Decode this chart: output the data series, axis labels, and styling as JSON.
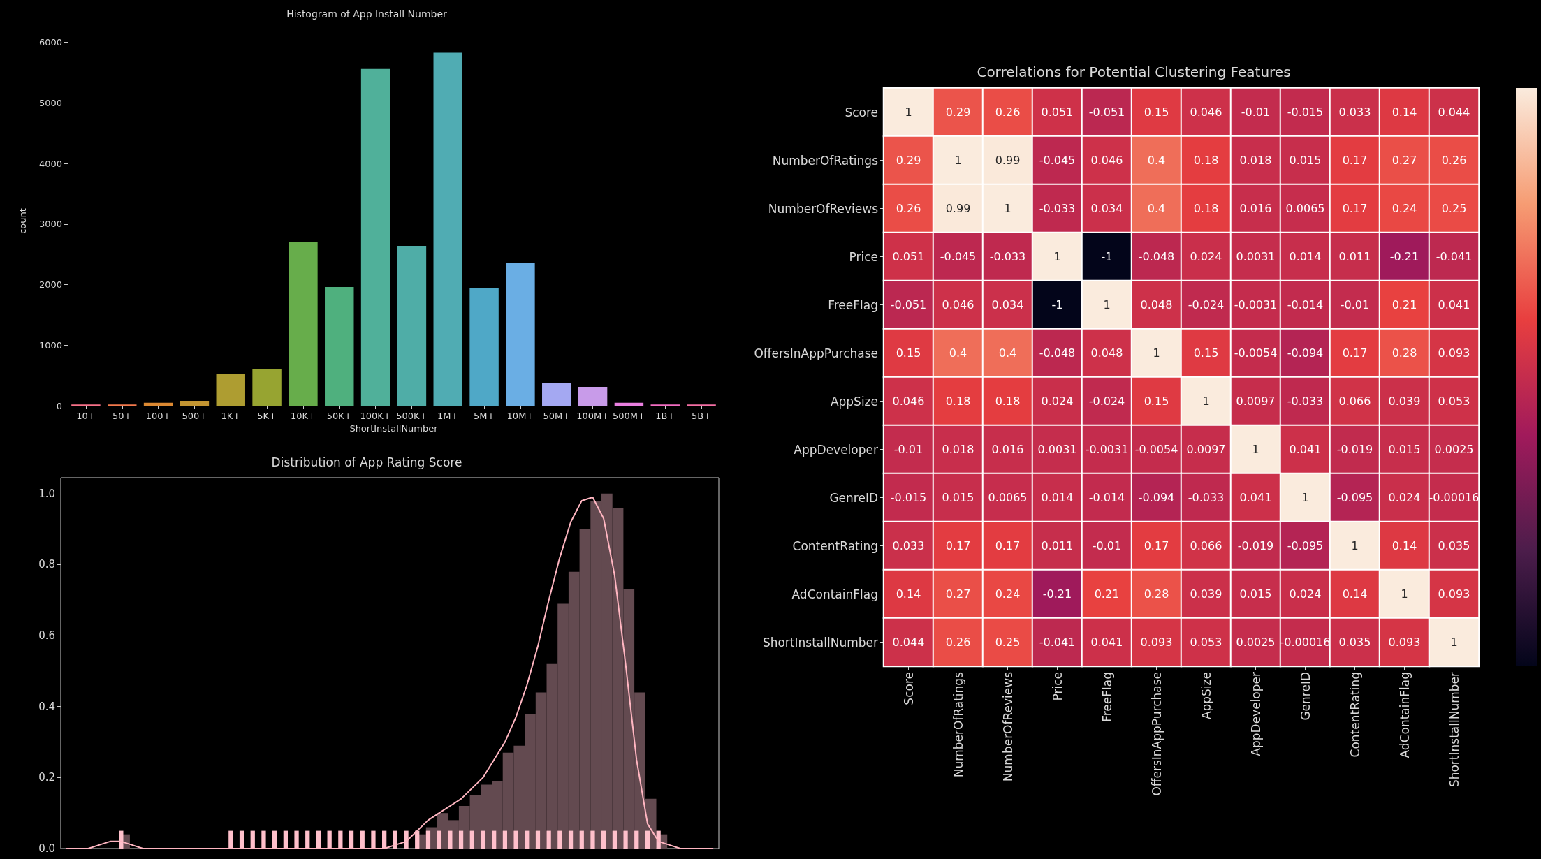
{
  "chart_data": [
    {
      "type": "bar",
      "title": "Histogram of App Install Number",
      "xlabel": "ShortInstallNumber",
      "ylabel": "count",
      "categories": [
        "10+",
        "50+",
        "100+",
        "500+",
        "1K+",
        "5K+",
        "10K+",
        "50K+",
        "100K+",
        "500K+",
        "1M+",
        "5M+",
        "10M+",
        "50M+",
        "100M+",
        "500M+",
        "1B+",
        "5B+"
      ],
      "values": [
        20,
        20,
        50,
        80,
        530,
        610,
        2710,
        1960,
        5560,
        2640,
        5830,
        1950,
        2360,
        370,
        310,
        50,
        20,
        20
      ],
      "colors": [
        "#f77189",
        "#f3794c",
        "#dc8932",
        "#c39532",
        "#ae9d31",
        "#97a431",
        "#67ad4b",
        "#4fb07e",
        "#50b09a",
        "#4fada7",
        "#50acb3",
        "#4fa8c7",
        "#6aaee4",
        "#a4a8f2",
        "#c89be9",
        "#e97fe0",
        "#f36dc2",
        "#f56fa4"
      ],
      "ylim": [
        0,
        6100
      ],
      "yticks": [
        0,
        1000,
        2000,
        3000,
        4000,
        5000,
        6000
      ]
    },
    {
      "type": "bar",
      "title": "Distribution of App Rating Score",
      "tick_labels": "y",
      "categories": [
        null,
        null,
        null,
        null,
        null,
        null,
        null,
        null,
        null,
        null,
        null,
        null,
        null,
        null,
        null,
        null,
        null,
        null,
        null,
        null,
        null,
        null,
        null,
        null,
        null,
        null,
        null,
        null,
        null,
        null,
        null,
        null,
        null,
        null,
        null,
        null,
        null,
        null,
        null,
        null,
        null,
        null,
        null,
        null,
        null,
        null,
        null,
        null,
        null,
        null,
        null,
        null,
        null,
        null,
        null,
        null,
        null,
        null,
        null,
        null
      ],
      "series": [
        {
          "type": "bar",
          "color": "#634a50",
          "values": [
            0,
            0,
            0,
            0,
            0,
            0.04,
            0,
            0,
            0,
            0,
            0,
            0,
            0,
            0,
            0,
            0,
            0,
            0,
            0,
            0,
            0,
            0,
            0,
            0,
            0,
            0,
            0,
            0,
            0,
            0,
            0,
            0,
            0.04,
            0.06,
            0.1,
            0.08,
            0.12,
            0.15,
            0.18,
            0.19,
            0.27,
            0.29,
            0.38,
            0.44,
            0.52,
            0.69,
            0.78,
            0.9,
            0.98,
            1,
            0.96,
            0.73,
            0.44,
            0.14,
            0.04,
            0,
            0,
            0,
            0,
            0
          ]
        },
        {
          "type": "line",
          "color": "#ffb6c1",
          "values": [
            0,
            0,
            0,
            0.01,
            0.02,
            0.02,
            0.01,
            0,
            0,
            0,
            0,
            0,
            0,
            0,
            0,
            0,
            0,
            0,
            0,
            0,
            0,
            0,
            0,
            0,
            0,
            0,
            0,
            0,
            0,
            0,
            0.01,
            0.02,
            0.05,
            0.08,
            0.1,
            0.12,
            0.14,
            0.17,
            0.2,
            0.25,
            0.3,
            0.37,
            0.46,
            0.57,
            0.7,
            0.82,
            0.92,
            0.98,
            0.99,
            0.93,
            0.77,
            0.52,
            0.25,
            0.07,
            0.02,
            0.01,
            0,
            0,
            0,
            0
          ]
        },
        {
          "type": "bar",
          "color": "#ffc0cb",
          "values": [
            null,
            null,
            null,
            null,
            null,
            0.05,
            null,
            null,
            null,
            null,
            null,
            null,
            null,
            null,
            null,
            0.05,
            0.05,
            0.05,
            0.05,
            0.05,
            0.05,
            0.05,
            0.05,
            0.05,
            0.05,
            0.05,
            0.05,
            0.05,
            0.05,
            0.05,
            0.05,
            0.05,
            0.05,
            0.05,
            0.05,
            0.05,
            0.05,
            0.05,
            0.05,
            0.05,
            0.05,
            0.05,
            0.05,
            0.05,
            0.05,
            0.05,
            0.05,
            0.05,
            0.05,
            0.05,
            0.05,
            0.05,
            0.05,
            0.05,
            0.05,
            null,
            null,
            null,
            null,
            null
          ]
        }
      ],
      "ylim": [
        0,
        1.045
      ],
      "yticks": [
        {
          "value": 0,
          "label": "0.0"
        },
        0.2,
        0.4,
        0.6,
        0.8,
        {
          "value": 1,
          "label": "1.0"
        }
      ]
    },
    {
      "type": "heatmap",
      "title": "Correlations for Potential Clustering Features",
      "data_labels": true,
      "categories": [
        "Score",
        "NumberOfRatings",
        "NumberOfReviews",
        "Price",
        "FreeFlag",
        "OffersInAppPurchase",
        "AppSize",
        "AppDeveloper",
        "GenreID",
        "ContentRating",
        "AdContainFlag",
        "ShortInstallNumber"
      ],
      "y_categories": [
        "Score",
        "NumberOfRatings",
        "NumberOfReviews",
        "Price",
        "FreeFlag",
        "OffersInAppPurchase",
        "AppSize",
        "AppDeveloper",
        "GenreID",
        "ContentRating",
        "AdContainFlag",
        "ShortInstallNumber"
      ],
      "cells": [
        [
          1,
          0.29,
          0.26,
          0.051,
          -0.051,
          0.15,
          0.046,
          -0.01,
          -0.015,
          0.033,
          0.14,
          0.044
        ],
        [
          0.29,
          1,
          0.99,
          -0.045,
          0.046,
          0.4,
          0.18,
          0.018,
          0.015,
          0.17,
          0.27,
          0.26
        ],
        [
          0.26,
          0.99,
          1,
          -0.033,
          0.034,
          0.4,
          0.18,
          0.016,
          0.0065,
          0.17,
          0.24,
          0.25
        ],
        [
          0.051,
          -0.045,
          -0.033,
          1,
          -1,
          -0.048,
          0.024,
          0.0031,
          0.014,
          0.011,
          -0.21,
          -0.041
        ],
        [
          -0.051,
          0.046,
          0.034,
          -1,
          1,
          0.048,
          -0.024,
          -0.0031,
          -0.014,
          -0.01,
          0.21,
          0.041
        ],
        [
          0.15,
          0.4,
          0.4,
          -0.048,
          0.048,
          1,
          0.15,
          -0.0054,
          -0.094,
          0.17,
          0.28,
          0.093
        ],
        [
          0.046,
          0.18,
          0.18,
          0.024,
          -0.024,
          0.15,
          1,
          0.0097,
          -0.033,
          0.066,
          0.039,
          0.053
        ],
        [
          -0.01,
          0.018,
          0.016,
          0.0031,
          -0.0031,
          -0.0054,
          0.0097,
          1,
          0.041,
          -0.019,
          0.015,
          0.0025
        ],
        [
          -0.015,
          0.015,
          0.0065,
          0.014,
          -0.014,
          -0.094,
          -0.033,
          0.041,
          1,
          -0.095,
          0.024,
          -0.00016
        ],
        [
          0.033,
          0.17,
          0.17,
          0.011,
          -0.01,
          0.17,
          0.066,
          -0.019,
          -0.095,
          1,
          0.14,
          0.035
        ],
        [
          0.14,
          0.27,
          0.24,
          -0.21,
          0.21,
          0.28,
          0.039,
          0.015,
          0.024,
          0.14,
          1,
          0.093
        ],
        [
          0.044,
          0.26,
          0.25,
          -0.041,
          0.041,
          0.093,
          0.053,
          0.0025,
          -0.00016,
          0.035,
          0.093,
          1
        ]
      ]
    }
  ]
}
